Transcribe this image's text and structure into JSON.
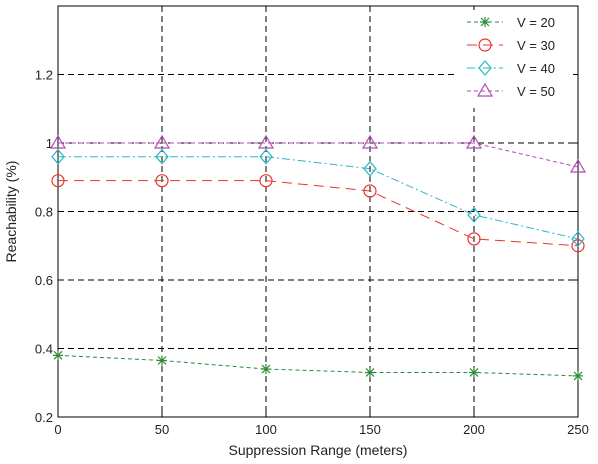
{
  "chart_data": {
    "type": "line",
    "xlabel": "Suppression Range (meters)",
    "ylabel": "Reachability (%)",
    "x": [
      0,
      50,
      100,
      150,
      200,
      250
    ],
    "xlim": [
      0,
      250
    ],
    "ylim": [
      0.2,
      1.4
    ],
    "xticks": [
      "0",
      "50",
      "100",
      "150",
      "200",
      "250"
    ],
    "yticks": [
      "0.2",
      "0.4",
      "0.6",
      "0.8",
      "1",
      "1.2"
    ],
    "grid": true,
    "legend_position": "top-right",
    "series": [
      {
        "name": "V = 20",
        "values": [
          0.38,
          0.365,
          0.34,
          0.33,
          0.33,
          0.32
        ],
        "color": "#2e8b3a",
        "marker": "asterisk",
        "dash": "dashed"
      },
      {
        "name": "V = 30",
        "values": [
          0.89,
          0.89,
          0.89,
          0.86,
          0.72,
          0.7
        ],
        "color": "#e8352a",
        "marker": "circle",
        "dash": "longdash"
      },
      {
        "name": "V = 40",
        "values": [
          0.96,
          0.96,
          0.96,
          0.925,
          0.79,
          0.72
        ],
        "color": "#2ab8c8",
        "marker": "diamond",
        "dash": "dashdot"
      },
      {
        "name": "V = 50",
        "values": [
          1.0,
          1.0,
          1.0,
          1.0,
          1.0,
          0.93
        ],
        "color": "#b24bb5",
        "marker": "triangle",
        "dash": "dashed"
      }
    ]
  }
}
